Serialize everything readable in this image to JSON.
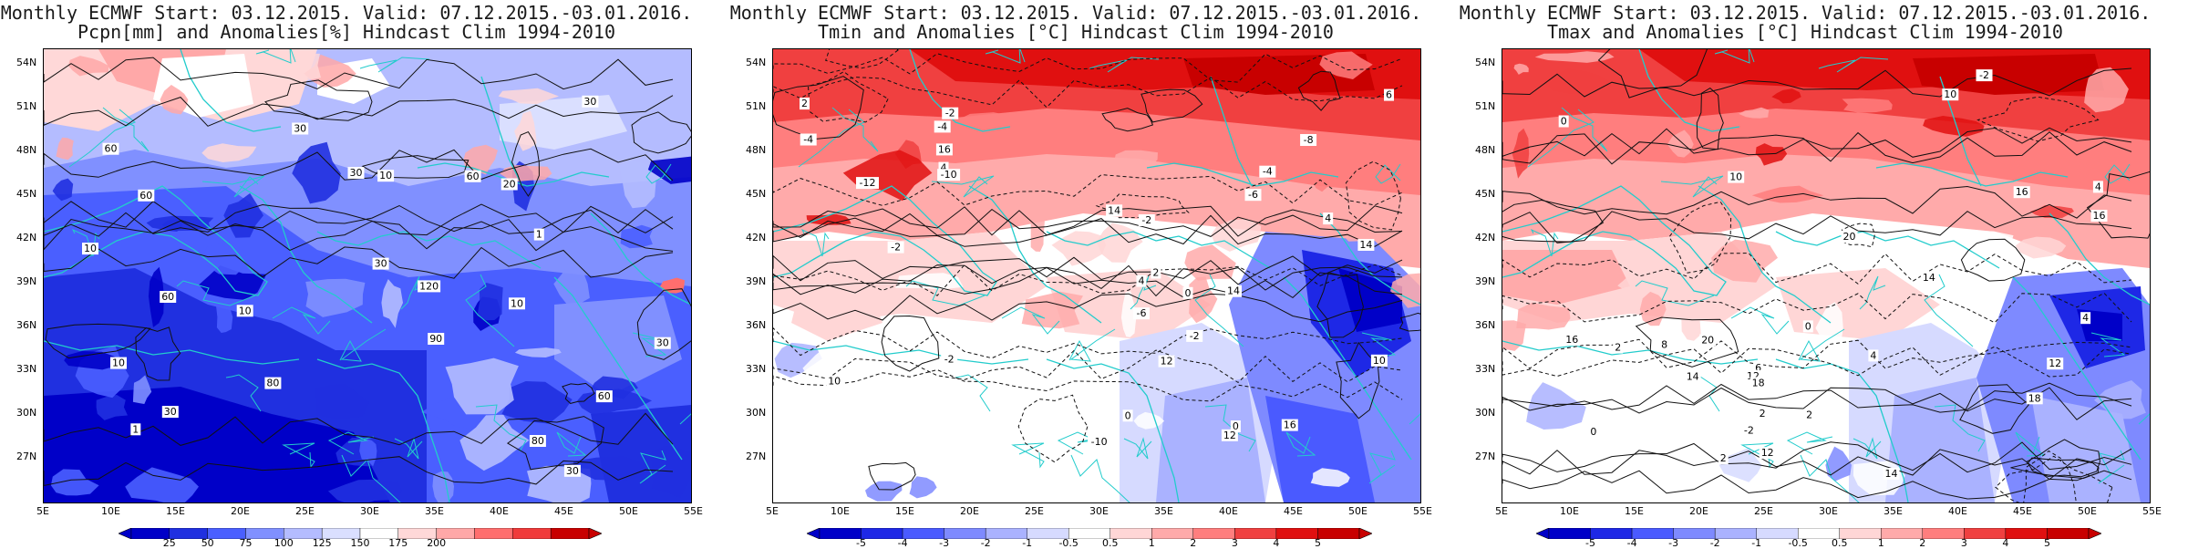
{
  "panels": [
    {
      "title_line1": "Monthly ECMWF Start: 03.12.2015. Valid: 07.12.2015.-03.01.2016.",
      "title_line2": "Pcpn[mm] and Anomalies[%] Hindcast Clim 1994-2010",
      "scheme": "precip",
      "colorbar_labels": [
        "25",
        "50",
        "75",
        "100",
        "125",
        "150",
        "175",
        "200"
      ],
      "contour_labels": [
        "30",
        "60",
        "90",
        "60",
        "60",
        "60",
        "30",
        "10",
        "20",
        "30",
        "60",
        "80",
        "80",
        "30",
        "120",
        "10",
        "10",
        "30",
        "10",
        "1",
        "30",
        "10",
        "1",
        "30"
      ]
    },
    {
      "title_line1": "Monthly ECMWF Start: 03.12.2015. Valid: 07.12.2015.-03.01.2016.",
      "title_line2": "Tmin and Anomalies [°C] Hindcast Clim 1994-2010",
      "scheme": "temp",
      "colorbar_labels": [
        "-5",
        "-4",
        "-3",
        "-2",
        "-1",
        "-0.5",
        "0.5",
        "1",
        "2",
        "3",
        "4",
        "5"
      ],
      "contour_labels": [
        "4",
        "2",
        "0",
        "-2",
        "-4",
        "0",
        "-2",
        "-4",
        "-10",
        "-6",
        "-2",
        "-2",
        "4",
        "10",
        "12",
        "14",
        "10",
        "14",
        "16",
        "-4",
        "-10",
        "-12",
        "-8",
        "2",
        "12",
        "16",
        "4",
        "6",
        "14",
        "-6",
        "-2",
        "0"
      ]
    },
    {
      "title_line1": "Monthly ECMWF Start: 03.12.2015. Valid: 07.12.2015.-03.01.2016.",
      "title_line2": "Tmax and Anomalies [°C] Hindcast Clim 1994-2010",
      "scheme": "temp",
      "colorbar_labels": [
        "-5",
        "-4",
        "-3",
        "-2",
        "-1",
        "-0.5",
        "0.5",
        "1",
        "2",
        "3",
        "4",
        "5"
      ],
      "contour_labels": [
        "4",
        "2",
        "-2",
        "0",
        "2",
        "0",
        "4",
        "6",
        "8",
        "10",
        "12",
        "14",
        "16",
        "18",
        "20",
        "14",
        "16",
        "10",
        "12",
        "2",
        "-2",
        "0",
        "2",
        "4",
        "12",
        "14",
        "18",
        "16",
        "20"
      ]
    }
  ],
  "lat_labels": [
    "54N",
    "51N",
    "48N",
    "45N",
    "42N",
    "39N",
    "36N",
    "33N",
    "30N",
    "27N"
  ],
  "lon_labels": [
    "5E",
    "10E",
    "15E",
    "20E",
    "25E",
    "30E",
    "35E",
    "40E",
    "45E",
    "50E",
    "55E"
  ],
  "colors": {
    "precip": [
      "#0000c8",
      "#2030e0",
      "#4a5fff",
      "#8090ff",
      "#b4bcff",
      "#dadfff",
      "#ffffff",
      "#ffd8d8",
      "#ffa8a8",
      "#ff6e6e",
      "#f03a3a",
      "#c80000"
    ],
    "temp": [
      "#0000c8",
      "#1e28e6",
      "#4a5aff",
      "#7e8aff",
      "#aab2ff",
      "#d6daff",
      "#ffffff",
      "#ffd6d6",
      "#ffaaaa",
      "#ff7e7e",
      "#f04040",
      "#e01010",
      "#c80000"
    ],
    "coast": "#22cccc",
    "contour": "#111111"
  }
}
